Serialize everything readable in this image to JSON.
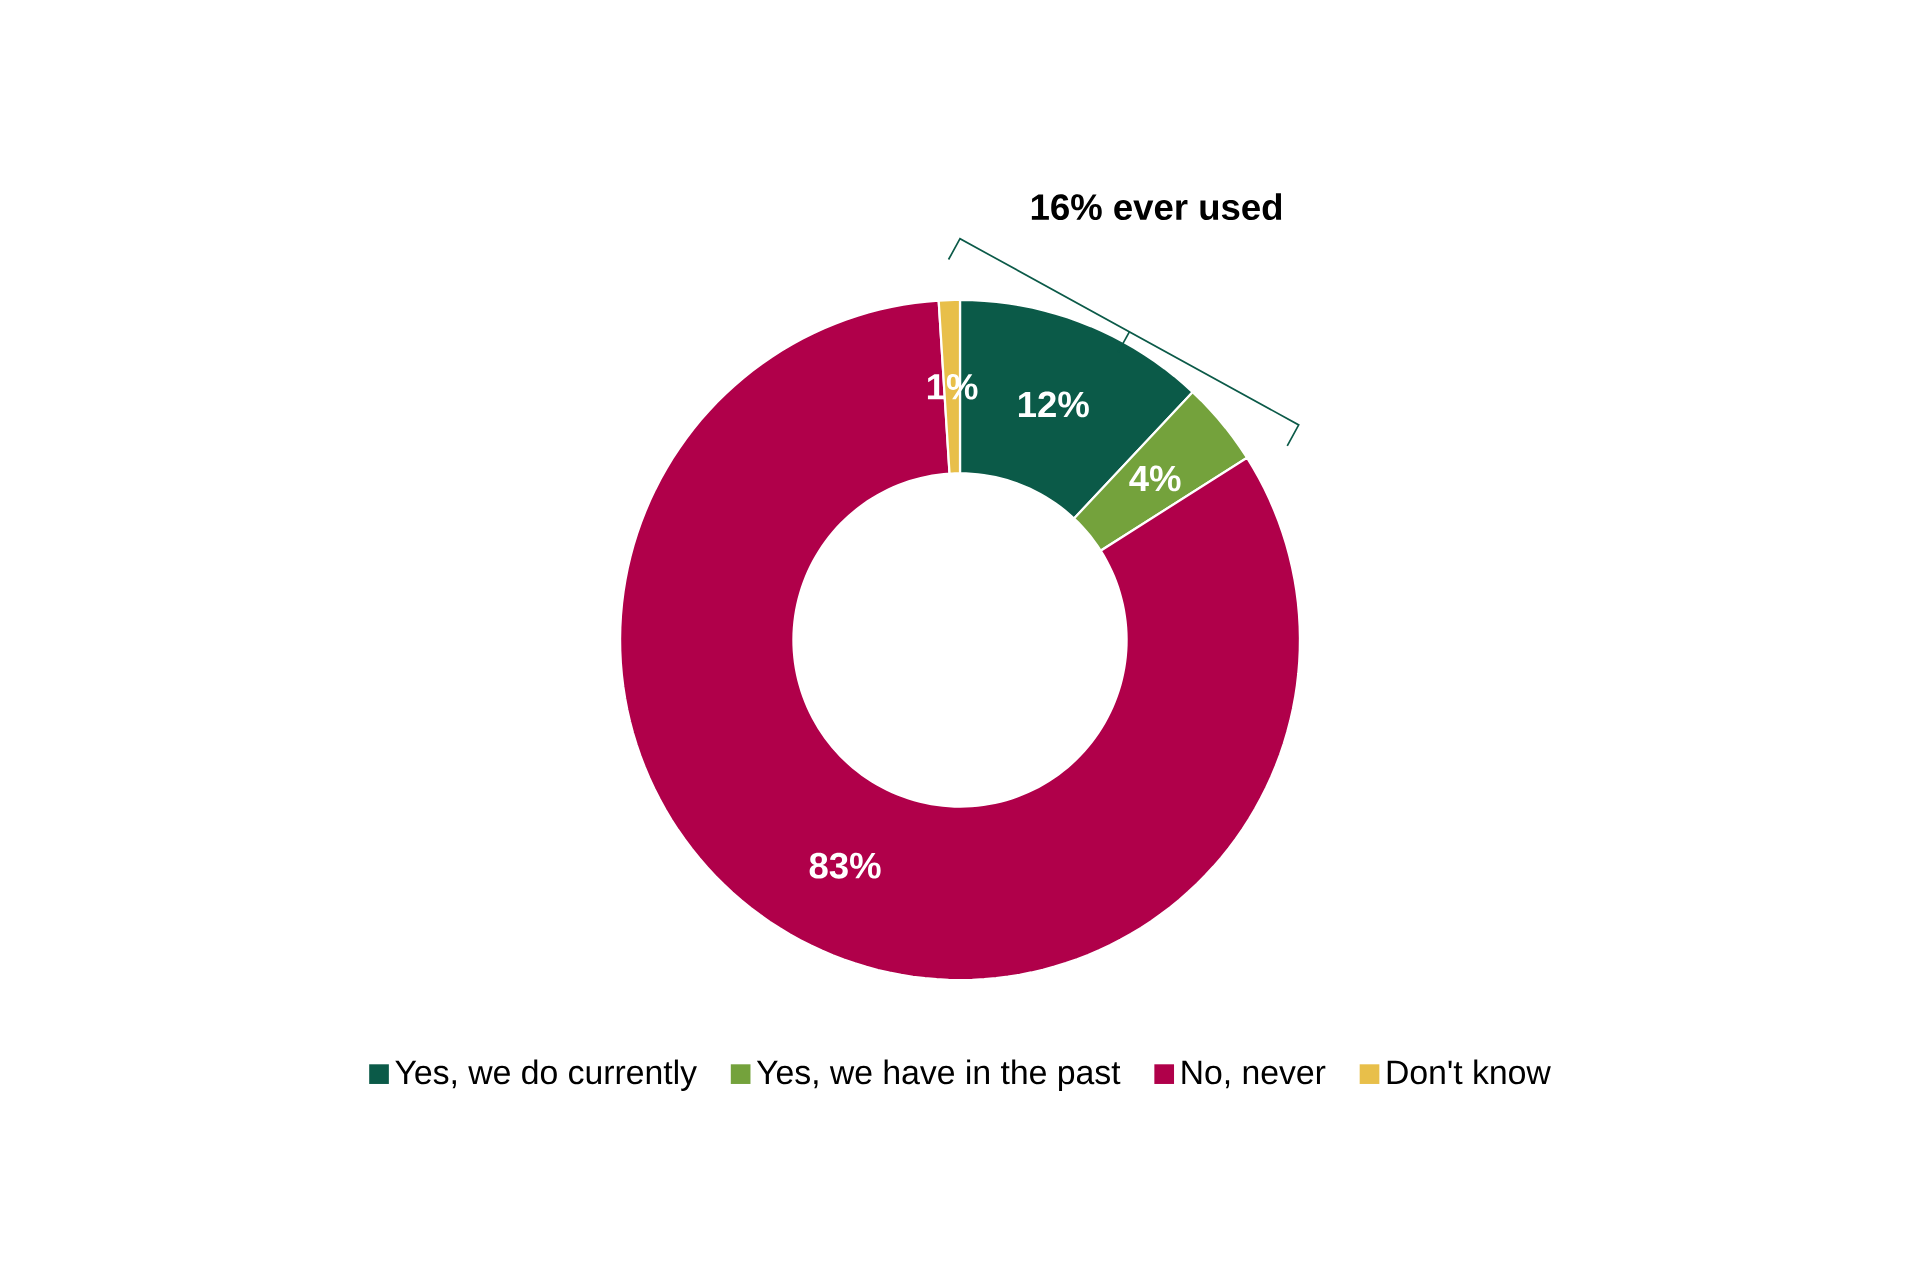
{
  "chart_data": {
    "type": "donut",
    "categories": [
      "Yes, we do currently",
      "Yes, we have in the past",
      "No, never",
      "Don't know"
    ],
    "values": [
      12,
      4,
      83,
      1
    ],
    "colors": [
      "#0b5a48",
      "#74a23c",
      "#b0004a",
      "#e8bf4a"
    ],
    "value_labels": [
      "12%",
      "4%",
      "83%",
      "1%"
    ],
    "legend": "bottom",
    "annotations": [
      "16% ever used"
    ]
  }
}
